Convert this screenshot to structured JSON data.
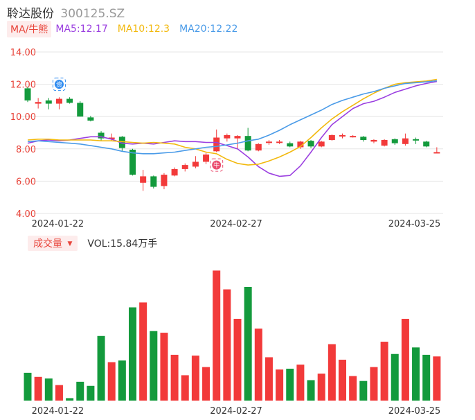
{
  "header": {
    "name": "聆达股份",
    "code": "300125.SZ"
  },
  "ma_legend": {
    "chip": "MA/牛熊",
    "items": [
      {
        "label": "MA5:12.17",
        "color": "#9b3fe0"
      },
      {
        "label": "MA10:12.3",
        "color": "#f2b90e"
      },
      {
        "label": "MA20:12.22",
        "color": "#4a9be8"
      }
    ]
  },
  "volume_legend": {
    "chip": "成交量",
    "arrow": "▼",
    "text": "VOL:15.84万手"
  },
  "colors": {
    "up": "#f23a3a",
    "down": "#139a3c",
    "ma5": "#9b3fe0",
    "ma10": "#f2b90e",
    "ma20": "#4a9be8"
  },
  "markers": [
    {
      "name": "fund-flow-marker-icon",
      "glyph": "资",
      "index": 3,
      "price": 12.0,
      "color": "#2e8bf0"
    },
    {
      "name": "bull-marker-icon",
      "glyph": "牛",
      "index": 18,
      "price": 7.0,
      "color": "#ea4d6f"
    }
  ],
  "chart_data": [
    {
      "type": "candlestick",
      "yticks": [
        "14.00",
        "12.00",
        "10.00",
        "8.00",
        "6.00",
        "4.00"
      ],
      "ylim": [
        4,
        14
      ],
      "xticks": [
        {
          "label": "2024-01-22",
          "index": 3
        },
        {
          "label": "2024-02-27",
          "index": 20
        },
        {
          "label": "2024-03-25",
          "index": 37
        }
      ],
      "candles": [
        {
          "o": 11.75,
          "c": 11.0,
          "h": 11.85,
          "l": 10.9
        },
        {
          "o": 10.8,
          "c": 10.9,
          "h": 11.15,
          "l": 10.5
        },
        {
          "o": 11.0,
          "c": 10.8,
          "h": 11.15,
          "l": 10.45
        },
        {
          "o": 10.8,
          "c": 11.1,
          "h": 11.2,
          "l": 10.45
        },
        {
          "o": 11.1,
          "c": 10.85,
          "h": 11.2,
          "l": 10.8
        },
        {
          "o": 10.85,
          "c": 10.0,
          "h": 10.95,
          "l": 10.0
        },
        {
          "o": 9.95,
          "c": 9.75,
          "h": 10.05,
          "l": 9.7
        },
        {
          "o": 9.0,
          "c": 8.65,
          "h": 9.1,
          "l": 8.5
        },
        {
          "o": 8.6,
          "c": 8.7,
          "h": 8.95,
          "l": 8.5
        },
        {
          "o": 8.75,
          "c": 8.05,
          "h": 8.8,
          "l": 7.85
        },
        {
          "o": 7.95,
          "c": 6.4,
          "h": 8.0,
          "l": 6.35
        },
        {
          "o": 5.9,
          "c": 6.3,
          "h": 6.7,
          "l": 5.4
        },
        {
          "o": 6.3,
          "c": 5.65,
          "h": 6.35,
          "l": 5.55
        },
        {
          "o": 5.7,
          "c": 6.4,
          "h": 6.5,
          "l": 5.5
        },
        {
          "o": 6.35,
          "c": 6.75,
          "h": 6.85,
          "l": 6.3
        },
        {
          "o": 6.75,
          "c": 7.0,
          "h": 7.1,
          "l": 6.6
        },
        {
          "o": 6.9,
          "c": 7.2,
          "h": 7.55,
          "l": 6.8
        },
        {
          "o": 7.2,
          "c": 7.65,
          "h": 7.75,
          "l": 7.05
        },
        {
          "o": 7.85,
          "c": 8.7,
          "h": 9.2,
          "l": 7.8
        },
        {
          "o": 8.65,
          "c": 8.85,
          "h": 8.95,
          "l": 8.45
        },
        {
          "o": 8.65,
          "c": 8.8,
          "h": 8.85,
          "l": 8.0
        },
        {
          "o": 8.8,
          "c": 7.9,
          "h": 9.3,
          "l": 7.85
        },
        {
          "o": 7.9,
          "c": 8.3,
          "h": 8.35,
          "l": 7.85
        },
        {
          "o": 8.4,
          "c": 8.45,
          "h": 8.55,
          "l": 8.25
        },
        {
          "o": 8.4,
          "c": 8.45,
          "h": 8.55,
          "l": 8.3
        },
        {
          "o": 8.35,
          "c": 8.15,
          "h": 8.45,
          "l": 8.1
        },
        {
          "o": 8.1,
          "c": 8.45,
          "h": 8.5,
          "l": 8.0
        },
        {
          "o": 8.5,
          "c": 8.15,
          "h": 8.55,
          "l": 8.05
        },
        {
          "o": 8.15,
          "c": 8.45,
          "h": 8.5,
          "l": 8.1
        },
        {
          "o": 8.55,
          "c": 8.85,
          "h": 8.9,
          "l": 8.5
        },
        {
          "o": 8.8,
          "c": 8.85,
          "h": 8.95,
          "l": 8.65
        },
        {
          "o": 8.8,
          "c": 8.8,
          "h": 8.85,
          "l": 8.7
        },
        {
          "o": 8.75,
          "c": 8.55,
          "h": 8.8,
          "l": 8.45
        },
        {
          "o": 8.45,
          "c": 8.55,
          "h": 8.6,
          "l": 8.35
        },
        {
          "o": 8.2,
          "c": 8.55,
          "h": 8.6,
          "l": 8.15
        },
        {
          "o": 8.6,
          "c": 8.35,
          "h": 8.65,
          "l": 8.25
        },
        {
          "o": 8.3,
          "c": 8.65,
          "h": 8.95,
          "l": 8.2
        },
        {
          "o": 8.6,
          "c": 8.55,
          "h": 8.7,
          "l": 8.3
        },
        {
          "o": 8.45,
          "c": 8.15,
          "h": 8.5,
          "l": 8.1
        },
        {
          "o": 7.8,
          "c": 7.8,
          "h": 8.1,
          "l": 7.75
        }
      ],
      "ma_lines": [
        {
          "name": "MA5",
          "values": [
            8.35,
            8.5,
            8.55,
            8.5,
            8.55,
            8.65,
            8.75,
            8.75,
            8.6,
            8.35,
            8.3,
            8.35,
            8.3,
            8.4,
            8.5,
            8.45,
            8.45,
            8.4,
            8.4,
            8.2,
            8.0,
            7.5,
            6.9,
            6.5,
            6.3,
            6.35,
            6.95,
            7.8,
            8.7,
            9.5,
            10.0,
            10.5,
            10.8,
            10.95,
            11.2,
            11.5,
            11.7,
            11.9,
            12.05,
            12.17
          ]
        },
        {
          "name": "MA10",
          "values": [
            8.55,
            8.6,
            8.6,
            8.55,
            8.55,
            8.55,
            8.55,
            8.5,
            8.5,
            8.45,
            8.4,
            8.35,
            8.4,
            8.35,
            8.3,
            8.1,
            8.0,
            7.8,
            7.7,
            7.35,
            7.1,
            7.0,
            7.05,
            7.25,
            7.5,
            7.8,
            8.15,
            8.7,
            9.3,
            9.85,
            10.3,
            10.7,
            11.1,
            11.45,
            11.75,
            12.0,
            12.1,
            12.15,
            12.2,
            12.3
          ]
        },
        {
          "name": "MA20",
          "values": [
            8.45,
            8.5,
            8.45,
            8.4,
            8.35,
            8.3,
            8.2,
            8.1,
            8.0,
            7.85,
            7.75,
            7.7,
            7.7,
            7.75,
            7.8,
            7.9,
            8.0,
            8.1,
            8.15,
            8.25,
            8.35,
            8.5,
            8.6,
            8.85,
            9.15,
            9.5,
            9.8,
            10.1,
            10.4,
            10.75,
            11.0,
            11.2,
            11.4,
            11.55,
            11.75,
            11.9,
            12.05,
            12.1,
            12.15,
            12.22
          ]
        }
      ]
    },
    {
      "type": "bar",
      "series": [
        {
          "values": [
            17,
            14.5,
            13.5,
            9.5,
            1.5,
            11.5,
            9,
            39.5,
            23.5,
            24.5,
            57,
            60,
            42.5,
            41.5,
            28,
            15.5,
            27.5,
            20.5,
            79.5,
            68,
            50,
            69.5,
            44,
            26.5,
            19,
            19.5,
            22,
            12.5,
            16.5,
            34.5,
            25,
            15,
            12,
            20.5,
            36,
            28.5,
            50,
            32.5,
            28,
            27
          ]
        }
      ],
      "xticks": [
        {
          "label": "2024-01-22",
          "index": 3
        },
        {
          "label": "2024-02-27",
          "index": 20
        },
        {
          "label": "2024-03-25",
          "index": 37
        }
      ]
    }
  ]
}
